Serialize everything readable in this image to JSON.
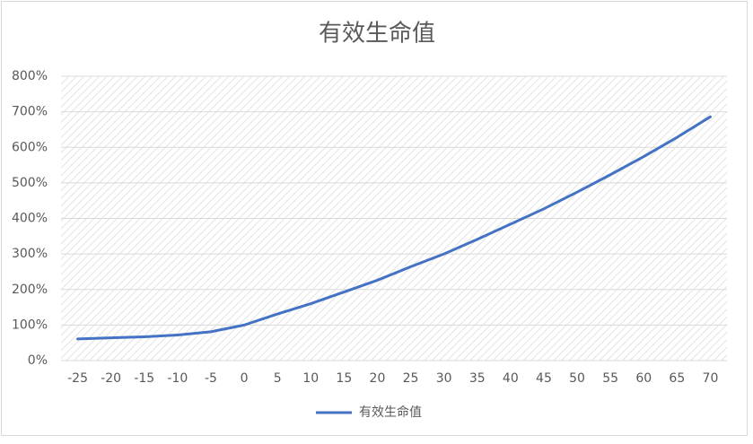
{
  "chart_data": {
    "type": "line",
    "title": "有效生命值",
    "categories": [
      "-25",
      "-20",
      "-15",
      "-10",
      "-5",
      "0",
      "5",
      "10",
      "15",
      "20",
      "25",
      "30",
      "35",
      "40",
      "45",
      "50",
      "55",
      "60",
      "65",
      "70"
    ],
    "series": [
      {
        "name": "有效生命值",
        "color": "#4472c4",
        "values": [
          61,
          64,
          67,
          72,
          81,
          100,
          131,
          160,
          193,
          226,
          264,
          300,
          341,
          384,
          427,
          474,
          523,
          574,
          628,
          686
        ]
      }
    ],
    "ylim": [
      0,
      800
    ],
    "yticks": [
      {
        "value": 0,
        "label": "0%"
      },
      {
        "value": 100,
        "label": "100%"
      },
      {
        "value": 200,
        "label": "200%"
      },
      {
        "value": 300,
        "label": "300%"
      },
      {
        "value": 400,
        "label": "400%"
      },
      {
        "value": 500,
        "label": "500%"
      },
      {
        "value": 600,
        "label": "600%"
      },
      {
        "value": 700,
        "label": "700%"
      },
      {
        "value": 800,
        "label": "800%"
      }
    ],
    "grid": true,
    "legend": "bottom"
  }
}
